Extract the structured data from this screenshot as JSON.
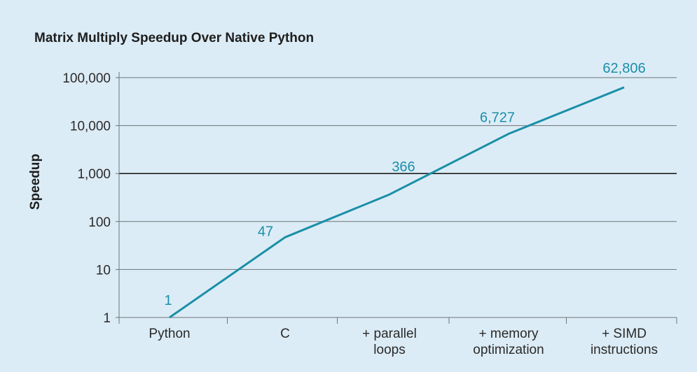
{
  "chart_data": {
    "type": "line",
    "title": "Matrix Multiply Speedup Over Native Python",
    "xlabel": "",
    "ylabel": "Speedup",
    "yscale": "log",
    "ylim": [
      1,
      100000
    ],
    "y_ticks": [
      {
        "value": 100000,
        "label": "100,000"
      },
      {
        "value": 10000,
        "label": "10,000"
      },
      {
        "value": 1000,
        "label": "1,000"
      },
      {
        "value": 100,
        "label": "100"
      },
      {
        "value": 10,
        "label": "10"
      },
      {
        "value": 1,
        "label": "1"
      }
    ],
    "categories": [
      [
        "Python"
      ],
      [
        "C"
      ],
      [
        "+ parallel",
        "loops"
      ],
      [
        "+ memory",
        "optimization"
      ],
      [
        "+ SIMD",
        "instructions"
      ]
    ],
    "series": [
      {
        "name": "Speedup",
        "values": [
          1,
          47,
          366,
          6727,
          62806
        ],
        "labels": [
          "1",
          "47",
          "366",
          "6,727",
          "62,806"
        ],
        "color": "#1a8fa8"
      }
    ],
    "grid": true,
    "highlight_gridline": 1000
  }
}
